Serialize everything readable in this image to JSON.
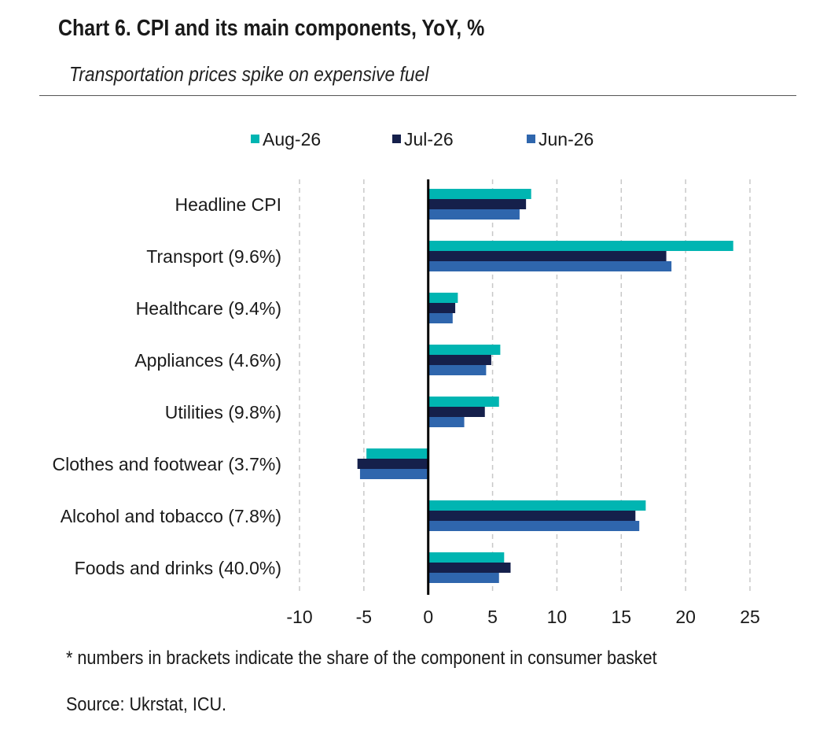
{
  "title": "Chart 6. CPI and its main components, YoY, %",
  "subtitle": "Transportation prices spike on expensive fuel",
  "footnote": "* numbers in brackets indicate the share of the component in consumer basket",
  "source": "Source: Ukrstat, ICU.",
  "colors": {
    "Aug-26": "#00b5b2",
    "Jul-26": "#15204b",
    "Jun-26": "#2f66ad"
  },
  "chart_data": {
    "type": "bar",
    "orientation": "horizontal",
    "categories": [
      "Headline CPI",
      "Transport (9.6%)",
      "Healthcare (9.4%)",
      "Appliances (4.6%)",
      "Utilities (9.8%)",
      "Clothes and footwear (3.7%)",
      "Alcohol and tobacco (7.8%)",
      "Foods and drinks (40.0%)"
    ],
    "series": [
      {
        "name": "Aug-26",
        "values": [
          8.0,
          23.7,
          2.3,
          5.6,
          5.5,
          -4.8,
          16.9,
          5.9
        ]
      },
      {
        "name": "Jul-26",
        "values": [
          7.6,
          18.5,
          2.1,
          4.9,
          4.4,
          -5.5,
          16.1,
          6.4
        ]
      },
      {
        "name": "Jun-26",
        "values": [
          7.1,
          18.9,
          1.9,
          4.5,
          2.8,
          -5.3,
          16.4,
          5.5
        ]
      }
    ],
    "xlim": [
      -10,
      25
    ],
    "xticks": [
      "-10",
      "-5",
      "0",
      "5",
      "10",
      "15",
      "20",
      "25"
    ],
    "grid": "vertical dashed",
    "legend_position": "top"
  }
}
